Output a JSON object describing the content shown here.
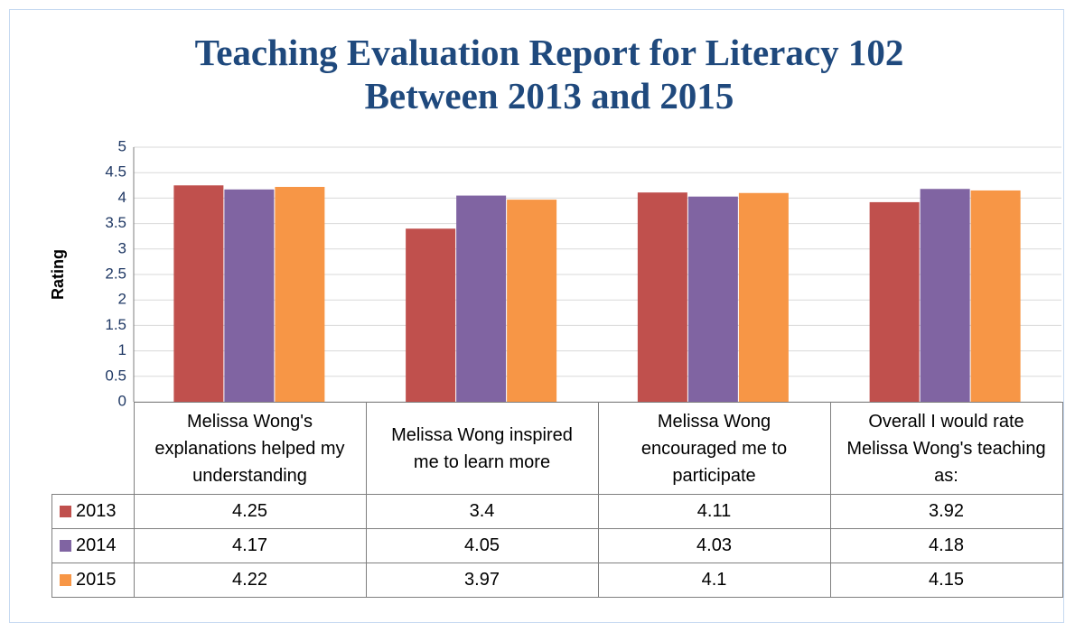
{
  "chart_data": {
    "type": "bar",
    "title": "Teaching Evaluation Report for Literacy 102 Between 2013 and 2015",
    "y_label": "Rating",
    "categories": [
      "Melissa Wong's explanations helped my understanding",
      "Melissa Wong inspired me to learn more",
      "Melissa Wong encouraged me to participate",
      "Overall I would rate Melissa Wong's teaching as:"
    ],
    "series": [
      {
        "name": "2013",
        "color": "#c0504d",
        "values": [
          4.25,
          3.4,
          4.11,
          3.92
        ]
      },
      {
        "name": "2014",
        "color": "#8064a2",
        "values": [
          4.17,
          4.05,
          4.03,
          4.18
        ]
      },
      {
        "name": "2015",
        "color": "#f79646",
        "values": [
          4.22,
          3.97,
          4.1,
          4.15
        ]
      }
    ],
    "ylim": [
      0,
      5
    ],
    "yticks": [
      0,
      0.5,
      1,
      1.5,
      2,
      2.5,
      3,
      3.5,
      4,
      4.5,
      5
    ],
    "grid": true,
    "data_table": true
  }
}
